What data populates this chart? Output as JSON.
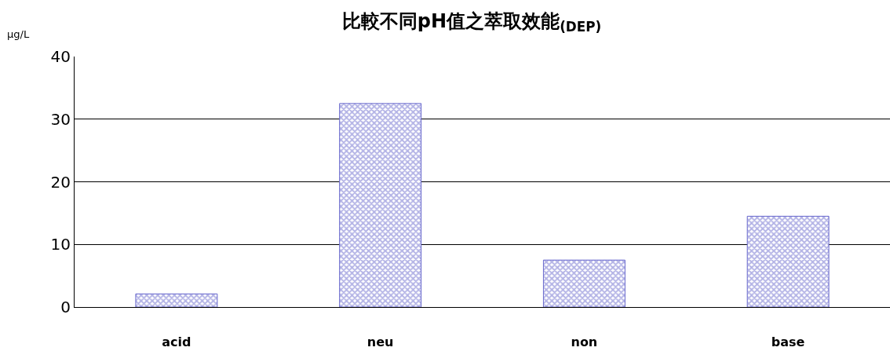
{
  "chart_data": {
    "type": "bar",
    "title": "比較不同pH值之萃取效能$_{(DEP)}$",
    "ylabel": "μg/L",
    "categories": [
      "acid",
      "neu",
      "non",
      "base"
    ],
    "values": [
      2.1,
      32.5,
      7.5,
      14.5
    ],
    "color": "#6666cc",
    "ylim": [
      0,
      40
    ],
    "yticks": [
      0,
      10,
      20,
      30,
      40
    ],
    "grid": "y"
  }
}
